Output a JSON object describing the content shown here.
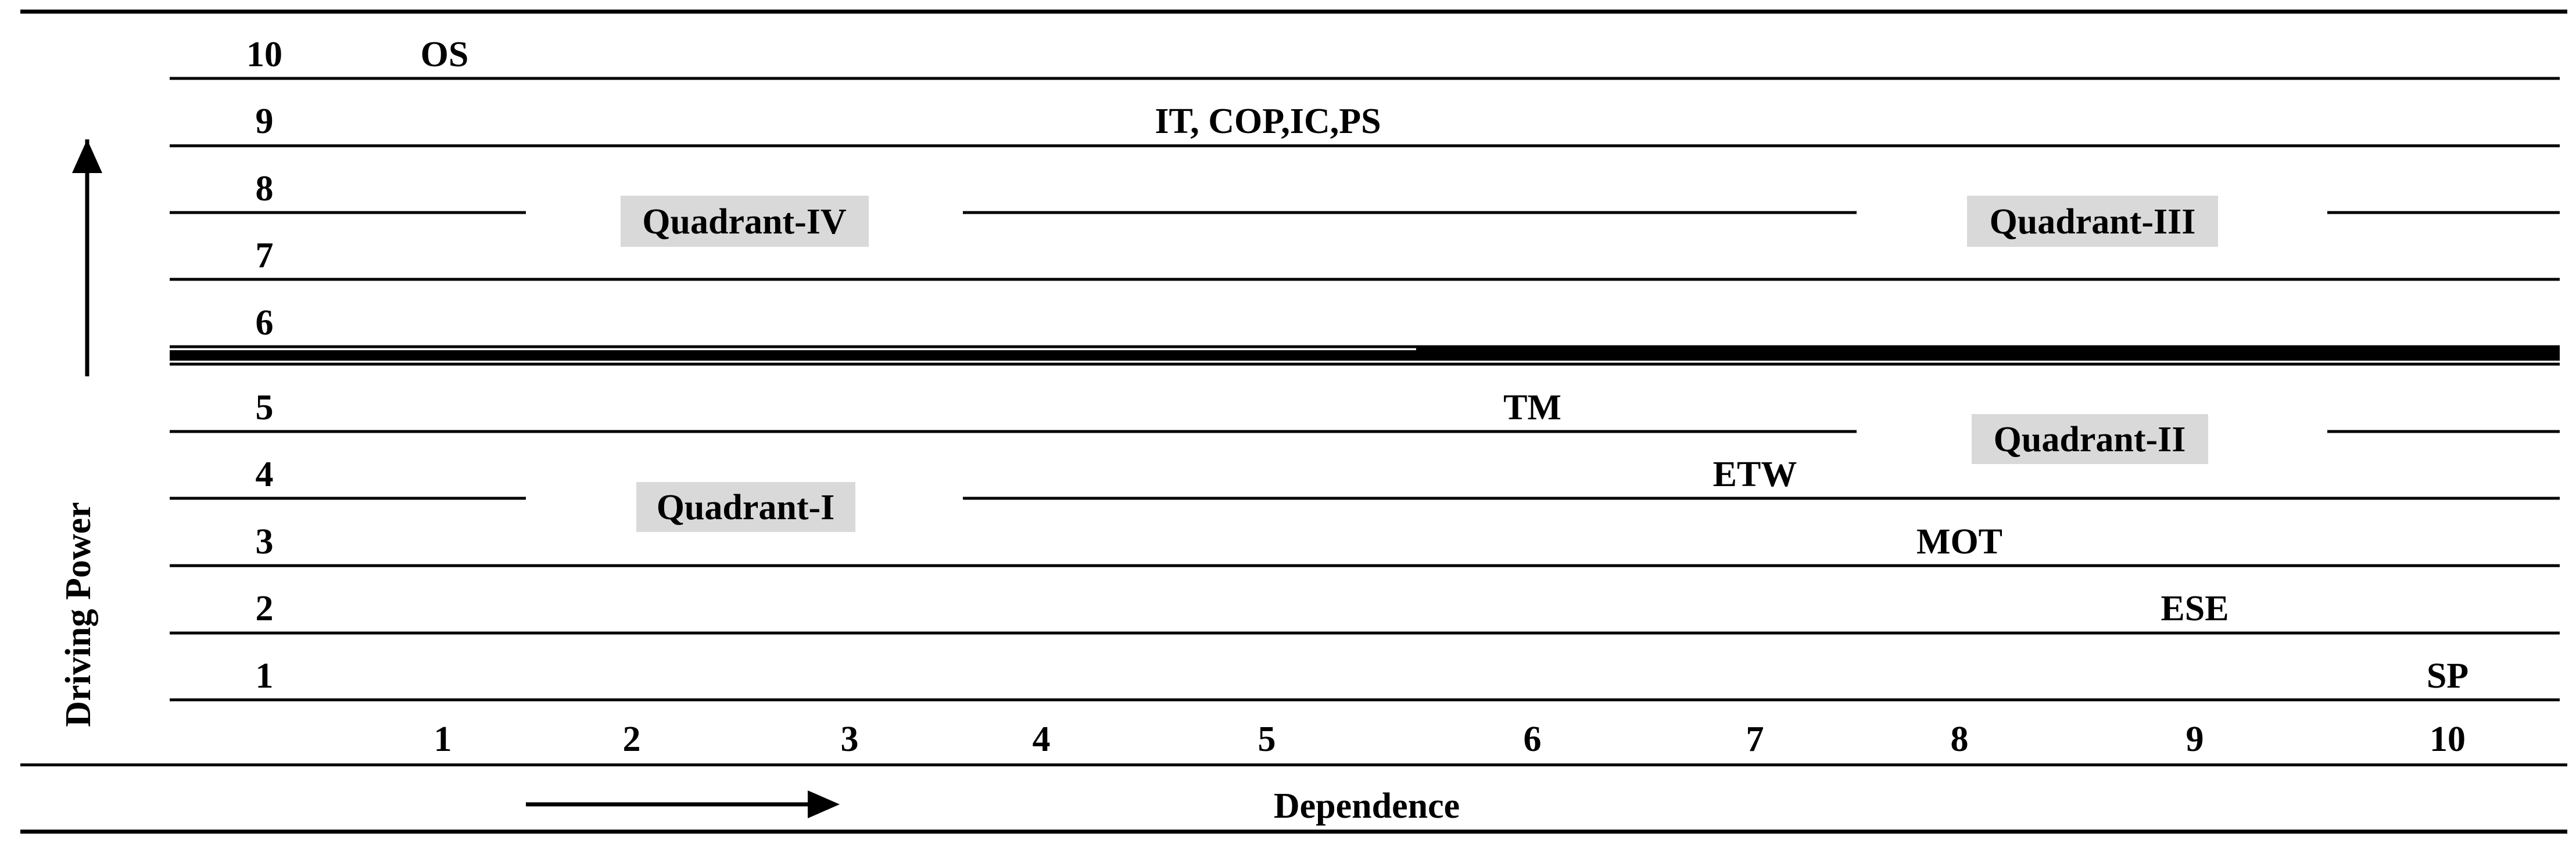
{
  "y_axis": {
    "label": "Driving Power",
    "ticks": [
      "10",
      "9",
      "8",
      "7",
      "6",
      "5",
      "4",
      "3",
      "2",
      "1"
    ]
  },
  "x_axis": {
    "label": "Dependence",
    "ticks": [
      "1",
      "2",
      "3",
      "4",
      "5",
      "6",
      "7",
      "8",
      "9",
      "10"
    ]
  },
  "quadrants": [
    {
      "id": "IV",
      "label": "Quadrant-IV"
    },
    {
      "id": "III",
      "label": "Quadrant-III"
    },
    {
      "id": "II",
      "label": "Quadrant-II"
    },
    {
      "id": "I",
      "label": "Quadrant-I"
    }
  ],
  "variables": [
    {
      "label": "OS",
      "driving_power": 10,
      "dependence": 1
    },
    {
      "label": "IT, COP,IC,PS",
      "driving_power": 9
    },
    {
      "label": "TM",
      "driving_power": 5,
      "dependence": 6
    },
    {
      "label": "ETW",
      "driving_power": 4,
      "dependence": 7
    },
    {
      "label": "MOT",
      "driving_power": 3,
      "dependence": 8
    },
    {
      "label": "ESE",
      "driving_power": 2,
      "dependence": 9
    },
    {
      "label": "SP",
      "driving_power": 1,
      "dependence": 10
    }
  ]
}
